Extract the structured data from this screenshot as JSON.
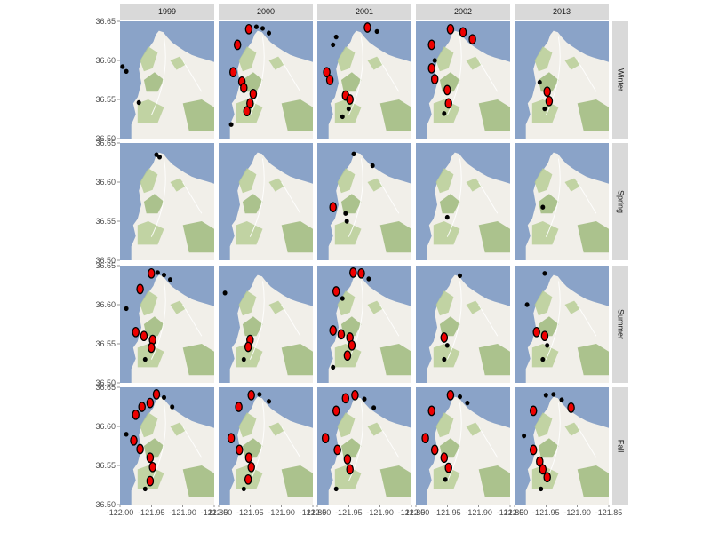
{
  "chart_data": {
    "type": "scatter",
    "title": "",
    "xlabel": "",
    "ylabel": "",
    "columns": [
      "1999",
      "2000",
      "2001",
      "2002",
      "2013"
    ],
    "rows": [
      "Winter",
      "Spring",
      "Summer",
      "Fall"
    ],
    "xlim": [
      -122.0,
      -121.85
    ],
    "ylim": [
      36.5,
      36.65
    ],
    "x_ticks": [
      "-122.00",
      "-121.95",
      "-121.90",
      "-121.85"
    ],
    "y_ticks": [
      "36.50",
      "36.55",
      "36.60",
      "36.65"
    ],
    "x_tick_values": [
      -122.0,
      -121.95,
      -121.9,
      -121.85
    ],
    "y_tick_values": [
      36.5,
      36.55,
      36.6,
      36.65
    ],
    "colors": {
      "strip_bg": "#d9d9d9",
      "water": "#8aa3c8",
      "land": "#f1efe9",
      "vegetation": "#b8ce96",
      "forest": "#9fba7c",
      "patch_fill": "#ee0000",
      "patch_outline": "#000000"
    },
    "coast": [
      [
        -121.982,
        36.518
      ],
      [
        -121.975,
        36.531
      ],
      [
        -121.979,
        36.545
      ],
      [
        -121.972,
        36.553
      ],
      [
        -121.966,
        36.571
      ],
      [
        -121.97,
        36.589
      ],
      [
        -121.965,
        36.603
      ],
      [
        -121.955,
        36.615
      ],
      [
        -121.947,
        36.624
      ],
      [
        -121.943,
        36.633
      ],
      [
        -121.938,
        36.638
      ],
      [
        -121.931,
        36.636
      ],
      [
        -121.925,
        36.63
      ],
      [
        -121.917,
        36.623
      ],
      [
        -121.908,
        36.618
      ],
      [
        -121.897,
        36.612
      ],
      [
        -121.886,
        36.607
      ],
      [
        -121.875,
        36.604
      ],
      [
        -121.862,
        36.601
      ],
      [
        -121.85,
        36.598
      ]
    ],
    "panels": [
      {
        "row": "Winter",
        "column": "1999",
        "points": [
          {
            "x": -121.99,
            "y": 36.586,
            "fill": false
          },
          {
            "x": -121.996,
            "y": 36.592,
            "fill": false
          },
          {
            "x": -121.97,
            "y": 36.546,
            "fill": false
          }
        ]
      },
      {
        "row": "Winter",
        "column": "2000",
        "points": [
          {
            "x": -121.952,
            "y": 36.64,
            "fill": true
          },
          {
            "x": -121.94,
            "y": 36.643,
            "fill": false
          },
          {
            "x": -121.93,
            "y": 36.641,
            "fill": false
          },
          {
            "x": -121.92,
            "y": 36.635,
            "fill": false
          },
          {
            "x": -121.97,
            "y": 36.62,
            "fill": true
          },
          {
            "x": -121.977,
            "y": 36.585,
            "fill": true
          },
          {
            "x": -121.963,
            "y": 36.573,
            "fill": true
          },
          {
            "x": -121.96,
            "y": 36.565,
            "fill": true
          },
          {
            "x": -121.945,
            "y": 36.557,
            "fill": true
          },
          {
            "x": -121.95,
            "y": 36.545,
            "fill": true
          },
          {
            "x": -121.955,
            "y": 36.535,
            "fill": true
          },
          {
            "x": -121.98,
            "y": 36.518,
            "fill": false
          }
        ]
      },
      {
        "row": "Winter",
        "column": "2001",
        "points": [
          {
            "x": -121.92,
            "y": 36.642,
            "fill": true
          },
          {
            "x": -121.905,
            "y": 36.637,
            "fill": false
          },
          {
            "x": -121.975,
            "y": 36.62,
            "fill": false
          },
          {
            "x": -121.97,
            "y": 36.63,
            "fill": false
          },
          {
            "x": -121.985,
            "y": 36.585,
            "fill": true
          },
          {
            "x": -121.98,
            "y": 36.575,
            "fill": true
          },
          {
            "x": -121.955,
            "y": 36.555,
            "fill": true
          },
          {
            "x": -121.948,
            "y": 36.55,
            "fill": true
          },
          {
            "x": -121.95,
            "y": 36.538,
            "fill": false
          },
          {
            "x": -121.96,
            "y": 36.528,
            "fill": false
          }
        ]
      },
      {
        "row": "Winter",
        "column": "2002",
        "points": [
          {
            "x": -121.945,
            "y": 36.64,
            "fill": true
          },
          {
            "x": -121.925,
            "y": 36.636,
            "fill": true
          },
          {
            "x": -121.91,
            "y": 36.627,
            "fill": true
          },
          {
            "x": -121.975,
            "y": 36.62,
            "fill": true
          },
          {
            "x": -121.97,
            "y": 36.6,
            "fill": false
          },
          {
            "x": -121.975,
            "y": 36.59,
            "fill": true
          },
          {
            "x": -121.97,
            "y": 36.576,
            "fill": true
          },
          {
            "x": -121.95,
            "y": 36.562,
            "fill": true
          },
          {
            "x": -121.948,
            "y": 36.545,
            "fill": true
          },
          {
            "x": -121.955,
            "y": 36.532,
            "fill": false
          }
        ]
      },
      {
        "row": "Winter",
        "column": "2013",
        "points": [
          {
            "x": -121.96,
            "y": 36.572,
            "fill": false
          },
          {
            "x": -121.948,
            "y": 36.56,
            "fill": true
          },
          {
            "x": -121.945,
            "y": 36.548,
            "fill": true
          },
          {
            "x": -121.952,
            "y": 36.538,
            "fill": false
          }
        ]
      },
      {
        "row": "Spring",
        "column": "1999",
        "points": [
          {
            "x": -121.942,
            "y": 36.635,
            "fill": false
          },
          {
            "x": -121.937,
            "y": 36.632,
            "fill": false
          }
        ]
      },
      {
        "row": "Spring",
        "column": "2000",
        "points": []
      },
      {
        "row": "Spring",
        "column": "2001",
        "points": [
          {
            "x": -121.942,
            "y": 36.636,
            "fill": false
          },
          {
            "x": -121.912,
            "y": 36.621,
            "fill": false
          },
          {
            "x": -121.975,
            "y": 36.568,
            "fill": true
          },
          {
            "x": -121.955,
            "y": 36.56,
            "fill": false
          },
          {
            "x": -121.953,
            "y": 36.55,
            "fill": false
          }
        ]
      },
      {
        "row": "Spring",
        "column": "2002",
        "points": [
          {
            "x": -121.95,
            "y": 36.555,
            "fill": false
          }
        ]
      },
      {
        "row": "Spring",
        "column": "2013",
        "points": [
          {
            "x": -121.955,
            "y": 36.568,
            "fill": false
          }
        ]
      },
      {
        "row": "Summer",
        "column": "1999",
        "points": [
          {
            "x": -121.95,
            "y": 36.64,
            "fill": true
          },
          {
            "x": -121.94,
            "y": 36.641,
            "fill": false
          },
          {
            "x": -121.93,
            "y": 36.638,
            "fill": false
          },
          {
            "x": -121.92,
            "y": 36.632,
            "fill": false
          },
          {
            "x": -121.968,
            "y": 36.62,
            "fill": true
          },
          {
            "x": -121.99,
            "y": 36.595,
            "fill": false
          },
          {
            "x": -121.975,
            "y": 36.565,
            "fill": true
          },
          {
            "x": -121.962,
            "y": 36.56,
            "fill": true
          },
          {
            "x": -121.948,
            "y": 36.555,
            "fill": true
          },
          {
            "x": -121.95,
            "y": 36.545,
            "fill": true
          },
          {
            "x": -121.96,
            "y": 36.53,
            "fill": false
          }
        ]
      },
      {
        "row": "Summer",
        "column": "2000",
        "points": [
          {
            "x": -121.99,
            "y": 36.615,
            "fill": false
          },
          {
            "x": -121.95,
            "y": 36.555,
            "fill": true
          },
          {
            "x": -121.953,
            "y": 36.546,
            "fill": true
          },
          {
            "x": -121.96,
            "y": 36.53,
            "fill": false
          }
        ]
      },
      {
        "row": "Summer",
        "column": "2001",
        "points": [
          {
            "x": -121.943,
            "y": 36.641,
            "fill": true
          },
          {
            "x": -121.93,
            "y": 36.64,
            "fill": true
          },
          {
            "x": -121.918,
            "y": 36.633,
            "fill": false
          },
          {
            "x": -121.97,
            "y": 36.617,
            "fill": true
          },
          {
            "x": -121.96,
            "y": 36.608,
            "fill": false
          },
          {
            "x": -121.975,
            "y": 36.567,
            "fill": true
          },
          {
            "x": -121.962,
            "y": 36.562,
            "fill": true
          },
          {
            "x": -121.948,
            "y": 36.558,
            "fill": true
          },
          {
            "x": -121.945,
            "y": 36.548,
            "fill": true
          },
          {
            "x": -121.952,
            "y": 36.535,
            "fill": true
          },
          {
            "x": -121.975,
            "y": 36.52,
            "fill": false
          }
        ]
      },
      {
        "row": "Summer",
        "column": "2002",
        "points": [
          {
            "x": -121.93,
            "y": 36.637,
            "fill": false
          },
          {
            "x": -121.955,
            "y": 36.558,
            "fill": true
          },
          {
            "x": -121.95,
            "y": 36.548,
            "fill": false
          },
          {
            "x": -121.955,
            "y": 36.53,
            "fill": false
          }
        ]
      },
      {
        "row": "Summer",
        "column": "2013",
        "points": [
          {
            "x": -121.952,
            "y": 36.64,
            "fill": false
          },
          {
            "x": -121.98,
            "y": 36.6,
            "fill": false
          },
          {
            "x": -121.965,
            "y": 36.565,
            "fill": true
          },
          {
            "x": -121.952,
            "y": 36.56,
            "fill": true
          },
          {
            "x": -121.948,
            "y": 36.548,
            "fill": false
          },
          {
            "x": -121.955,
            "y": 36.53,
            "fill": false
          }
        ]
      },
      {
        "row": "Fall",
        "column": "1999",
        "points": [
          {
            "x": -121.965,
            "y": 36.625,
            "fill": true
          },
          {
            "x": -121.952,
            "y": 36.63,
            "fill": true
          },
          {
            "x": -121.942,
            "y": 36.641,
            "fill": true
          },
          {
            "x": -121.93,
            "y": 36.637,
            "fill": false
          },
          {
            "x": -121.917,
            "y": 36.625,
            "fill": false
          },
          {
            "x": -121.975,
            "y": 36.615,
            "fill": true
          },
          {
            "x": -121.99,
            "y": 36.59,
            "fill": false
          },
          {
            "x": -121.978,
            "y": 36.582,
            "fill": true
          },
          {
            "x": -121.968,
            "y": 36.571,
            "fill": true
          },
          {
            "x": -121.952,
            "y": 36.56,
            "fill": true
          },
          {
            "x": -121.948,
            "y": 36.548,
            "fill": true
          },
          {
            "x": -121.952,
            "y": 36.53,
            "fill": true
          },
          {
            "x": -121.96,
            "y": 36.52,
            "fill": false
          }
        ]
      },
      {
        "row": "Fall",
        "column": "2000",
        "points": [
          {
            "x": -121.948,
            "y": 36.64,
            "fill": true
          },
          {
            "x": -121.935,
            "y": 36.641,
            "fill": false
          },
          {
            "x": -121.92,
            "y": 36.632,
            "fill": false
          },
          {
            "x": -121.968,
            "y": 36.625,
            "fill": true
          },
          {
            "x": -121.98,
            "y": 36.585,
            "fill": true
          },
          {
            "x": -121.967,
            "y": 36.57,
            "fill": true
          },
          {
            "x": -121.952,
            "y": 36.56,
            "fill": true
          },
          {
            "x": -121.948,
            "y": 36.548,
            "fill": true
          },
          {
            "x": -121.953,
            "y": 36.532,
            "fill": true
          },
          {
            "x": -121.96,
            "y": 36.52,
            "fill": false
          }
        ]
      },
      {
        "row": "Fall",
        "column": "2001",
        "points": [
          {
            "x": -121.955,
            "y": 36.636,
            "fill": true
          },
          {
            "x": -121.94,
            "y": 36.64,
            "fill": true
          },
          {
            "x": -121.925,
            "y": 36.635,
            "fill": false
          },
          {
            "x": -121.91,
            "y": 36.624,
            "fill": false
          },
          {
            "x": -121.97,
            "y": 36.62,
            "fill": true
          },
          {
            "x": -121.987,
            "y": 36.585,
            "fill": true
          },
          {
            "x": -121.968,
            "y": 36.57,
            "fill": true
          },
          {
            "x": -121.952,
            "y": 36.558,
            "fill": true
          },
          {
            "x": -121.948,
            "y": 36.545,
            "fill": true
          },
          {
            "x": -121.97,
            "y": 36.52,
            "fill": false
          }
        ]
      },
      {
        "row": "Fall",
        "column": "2002",
        "points": [
          {
            "x": -121.945,
            "y": 36.64,
            "fill": true
          },
          {
            "x": -121.93,
            "y": 36.638,
            "fill": false
          },
          {
            "x": -121.918,
            "y": 36.63,
            "fill": false
          },
          {
            "x": -121.975,
            "y": 36.62,
            "fill": true
          },
          {
            "x": -121.985,
            "y": 36.585,
            "fill": true
          },
          {
            "x": -121.97,
            "y": 36.57,
            "fill": true
          },
          {
            "x": -121.955,
            "y": 36.56,
            "fill": true
          },
          {
            "x": -121.948,
            "y": 36.547,
            "fill": true
          },
          {
            "x": -121.953,
            "y": 36.532,
            "fill": false
          }
        ]
      },
      {
        "row": "Fall",
        "column": "2013",
        "points": [
          {
            "x": -121.95,
            "y": 36.64,
            "fill": false
          },
          {
            "x": -121.938,
            "y": 36.641,
            "fill": false
          },
          {
            "x": -121.925,
            "y": 36.634,
            "fill": false
          },
          {
            "x": -121.91,
            "y": 36.624,
            "fill": true
          },
          {
            "x": -121.97,
            "y": 36.62,
            "fill": true
          },
          {
            "x": -121.985,
            "y": 36.588,
            "fill": false
          },
          {
            "x": -121.97,
            "y": 36.57,
            "fill": true
          },
          {
            "x": -121.96,
            "y": 36.555,
            "fill": true
          },
          {
            "x": -121.955,
            "y": 36.545,
            "fill": true
          },
          {
            "x": -121.948,
            "y": 36.535,
            "fill": true
          },
          {
            "x": -121.958,
            "y": 36.52,
            "fill": false
          }
        ]
      }
    ]
  }
}
